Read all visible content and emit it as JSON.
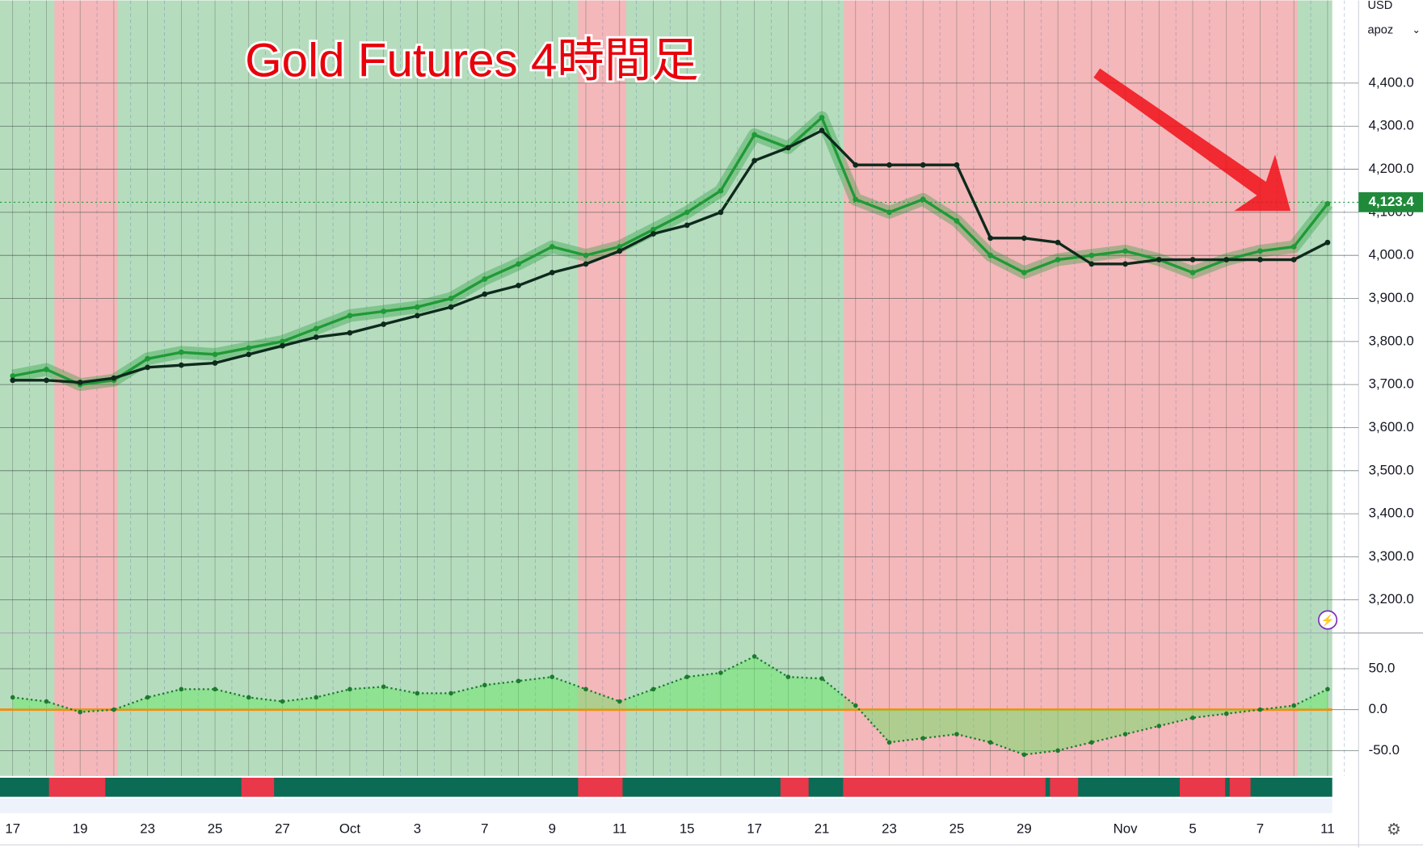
{
  "currency": "USD",
  "account": "apoz",
  "chart_data": [
    {
      "type": "line",
      "title": "Gold Futures 4時間足",
      "categories": [
        "17",
        null,
        "19",
        null,
        "23",
        null,
        "25",
        null,
        "27",
        null,
        "Oct",
        null,
        "3",
        null,
        "7",
        null,
        "9",
        null,
        "11",
        null,
        "15",
        null,
        "17",
        null,
        "21",
        null,
        "23",
        null,
        "25",
        null,
        "29",
        null,
        null,
        "Nov",
        null,
        "5",
        null,
        "7",
        null,
        "11"
      ],
      "series": [
        {
          "color": "#1f9a36",
          "values": [
            3720,
            3735,
            3700,
            3710,
            3760,
            3775,
            3770,
            3785,
            3800,
            3830,
            3860,
            3870,
            3880,
            3900,
            3945,
            3980,
            4020,
            4000,
            4020,
            4060,
            4100,
            4150,
            4280,
            4250,
            4320,
            4130,
            4100,
            4130,
            4080,
            4000,
            3960,
            3990,
            4000,
            4010,
            3990,
            3960,
            3990,
            4010,
            4020,
            4120
          ]
        },
        {
          "color": "#0d2a1c",
          "values": [
            3710,
            3710,
            3705,
            3715,
            3740,
            3745,
            3750,
            3770,
            3790,
            3810,
            3820,
            3840,
            3860,
            3880,
            3910,
            3930,
            3960,
            3980,
            4010,
            4050,
            4070,
            4100,
            4220,
            4250,
            4290,
            4210,
            4210,
            4210,
            4210,
            4040,
            4040,
            4030,
            3980,
            3980,
            3990,
            3990,
            3990,
            3990,
            3990,
            4030
          ]
        }
      ],
      "ylim": [
        3124,
        4592
      ],
      "yticks": [
        {
          "value": 3200,
          "label": "3,200.0"
        },
        {
          "value": 3300,
          "label": "3,300.0"
        },
        {
          "value": 3400,
          "label": "3,400.0"
        },
        {
          "value": 3500,
          "label": "3,500.0"
        },
        {
          "value": 3600,
          "label": "3,600.0"
        },
        {
          "value": 3700,
          "label": "3,700.0"
        },
        {
          "value": 3800,
          "label": "3,800.0"
        },
        {
          "value": 3900,
          "label": "3,900.0"
        },
        {
          "value": 4000,
          "label": "4,000.0"
        },
        {
          "value": 4100,
          "label": "4,100.0"
        },
        {
          "value": 4200,
          "label": "4,200.0"
        },
        {
          "value": 4300,
          "label": "4,300.0"
        },
        {
          "value": 4400,
          "label": "4,400.0"
        }
      ],
      "last_price": {
        "value": 4123.4,
        "label": "4,123.4"
      },
      "grid": true
    },
    {
      "type": "line",
      "series": [
        {
          "color": "#1c7a2e",
          "values": [
            15,
            10,
            -3,
            0,
            15,
            25,
            25,
            15,
            10,
            15,
            25,
            28,
            20,
            20,
            30,
            35,
            40,
            25,
            10,
            25,
            40,
            45,
            65,
            40,
            38,
            5,
            -40,
            -35,
            -30,
            -40,
            -55,
            -50,
            -40,
            -30,
            -20,
            -10,
            -5,
            0,
            5,
            25
          ]
        }
      ],
      "ylim": [
        -81,
        93
      ],
      "yticks": [
        {
          "value": 50,
          "label": "50.0"
        },
        {
          "value": 0,
          "label": "0.0"
        },
        {
          "value": -50,
          "label": "-50.0"
        }
      ],
      "grid": true
    }
  ]
}
